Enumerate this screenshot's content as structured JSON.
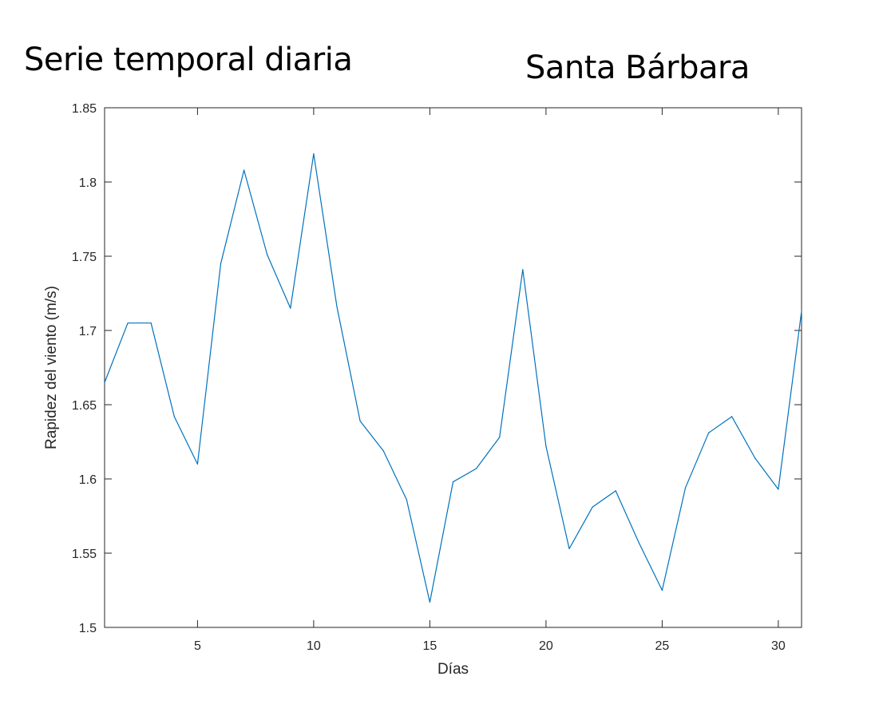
{
  "header": {
    "left_title": "Serie temporal diaria",
    "right_title": "Santa Bárbara"
  },
  "chart_data": {
    "type": "line",
    "title": "",
    "xlabel": "Días",
    "ylabel": "Rapidez del viento (m/s)",
    "xlim": [
      1,
      31
    ],
    "ylim": [
      1.5,
      1.85
    ],
    "xticks": [
      5,
      10,
      15,
      20,
      25,
      30
    ],
    "yticks": [
      1.5,
      1.55,
      1.6,
      1.65,
      1.7,
      1.75,
      1.8,
      1.85
    ],
    "xtick_labels": [
      "5",
      "10",
      "15",
      "20",
      "25",
      "30"
    ],
    "ytick_labels": [
      "1.5",
      "1.55",
      "1.6",
      "1.65",
      "1.7",
      "1.75",
      "1.8",
      "1.85"
    ],
    "grid": false,
    "line_color": "#0072bd",
    "series": [
      {
        "x": [
          1,
          2,
          3,
          4,
          5,
          6,
          7,
          8,
          9,
          10,
          11,
          12,
          13,
          14,
          15,
          16,
          17,
          18,
          19,
          20,
          21,
          22,
          23,
          24,
          25,
          26,
          27,
          28,
          29,
          30,
          31
        ],
        "values": [
          1.665,
          1.705,
          1.705,
          1.642,
          1.61,
          1.745,
          1.808,
          1.751,
          1.715,
          1.819,
          1.716,
          1.639,
          1.619,
          1.586,
          1.517,
          1.598,
          1.607,
          1.628,
          1.741,
          1.622,
          1.553,
          1.581,
          1.592,
          1.557,
          1.525,
          1.594,
          1.631,
          1.642,
          1.614,
          1.593,
          1.713
        ]
      }
    ]
  }
}
